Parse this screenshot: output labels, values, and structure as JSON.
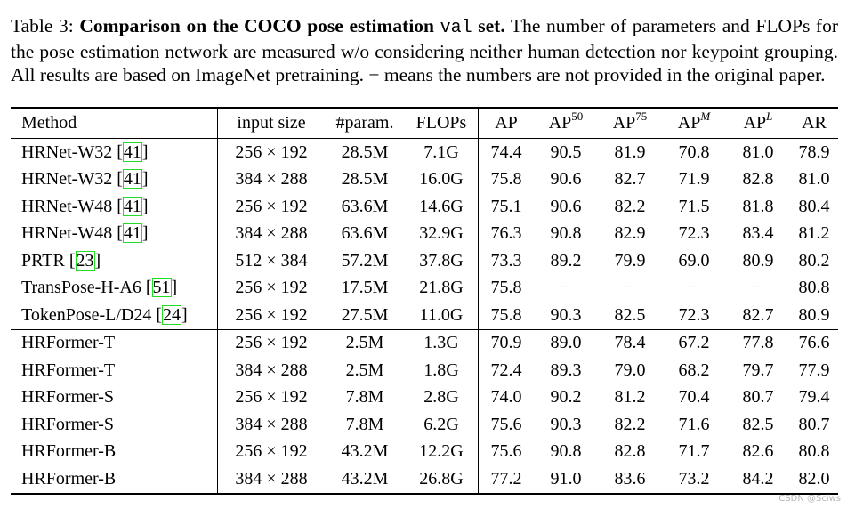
{
  "caption": {
    "prefix": "Table 3: ",
    "bold": "Comparison on the COCO pose estimation",
    "mono": "val",
    "bold_end": " set.",
    "rest": " The number of parameters and FLOPs for the pose estimation network are measured w/o considering neither human detection nor keypoint grouping. All results are based on ImageNet pretraining. − means the numbers are not provided in the original paper."
  },
  "table": {
    "headers": {
      "method": "Method",
      "input_size": "input size",
      "params": "#param.",
      "flops": "FLOPs",
      "ap": "AP",
      "ap50_base": "AP",
      "ap50_sup": "50",
      "ap75_base": "AP",
      "ap75_sup": "75",
      "apm_base": "AP",
      "apm_sup": "M",
      "apl_base": "AP",
      "apl_sup": "L",
      "ar": "AR"
    },
    "group1": [
      {
        "method": "HRNet-W32",
        "ref": "41",
        "input": "256 × 192",
        "params": "28.5M",
        "flops": "7.1G",
        "ap": "74.4",
        "ap50": "90.5",
        "ap75": "81.9",
        "apm": "70.8",
        "apl": "81.0",
        "ar": "78.9"
      },
      {
        "method": "HRNet-W32",
        "ref": "41",
        "input": "384 × 288",
        "params": "28.5M",
        "flops": "16.0G",
        "ap": "75.8",
        "ap50": "90.6",
        "ap75": "82.7",
        "apm": "71.9",
        "apl": "82.8",
        "ar": "81.0"
      },
      {
        "method": "HRNet-W48",
        "ref": "41",
        "input": "256 × 192",
        "params": "63.6M",
        "flops": "14.6G",
        "ap": "75.1",
        "ap50": "90.6",
        "ap75": "82.2",
        "apm": "71.5",
        "apl": "81.8",
        "ar": "80.4"
      },
      {
        "method": "HRNet-W48",
        "ref": "41",
        "input": "384 × 288",
        "params": "63.6M",
        "flops": "32.9G",
        "ap": "76.3",
        "ap50": "90.8",
        "ap75": "82.9",
        "apm": "72.3",
        "apl": "83.4",
        "ar": "81.2"
      },
      {
        "method": "PRTR",
        "ref": "23",
        "input": "512 × 384",
        "params": "57.2M",
        "flops": "37.8G",
        "ap": "73.3",
        "ap50": "89.2",
        "ap75": "79.9",
        "apm": "69.0",
        "apl": "80.9",
        "ar": "80.2"
      },
      {
        "method": "TransPose-H-A6",
        "ref": "51",
        "input": "256 × 192",
        "params": "17.5M",
        "flops": "21.8G",
        "ap": "75.8",
        "ap50": "−",
        "ap75": "−",
        "apm": "−",
        "apl": "−",
        "ar": "80.8"
      },
      {
        "method": "TokenPose-L/D24",
        "ref": "24",
        "input": "256 × 192",
        "params": "27.5M",
        "flops": "11.0G",
        "ap": "75.8",
        "ap50": "90.3",
        "ap75": "82.5",
        "apm": "72.3",
        "apl": "82.7",
        "ar": "80.9"
      }
    ],
    "group2": [
      {
        "method": "HRFormer-T",
        "input": "256 × 192",
        "params": "2.5M",
        "flops": "1.3G",
        "ap": "70.9",
        "ap50": "89.0",
        "ap75": "78.4",
        "apm": "67.2",
        "apl": "77.8",
        "ar": "76.6"
      },
      {
        "method": "HRFormer-T",
        "input": "384 × 288",
        "params": "2.5M",
        "flops": "1.8G",
        "ap": "72.4",
        "ap50": "89.3",
        "ap75": "79.0",
        "apm": "68.2",
        "apl": "79.7",
        "ar": "77.9"
      },
      {
        "method": "HRFormer-S",
        "input": "256 × 192",
        "params": "7.8M",
        "flops": "2.8G",
        "ap": "74.0",
        "ap50": "90.2",
        "ap75": "81.2",
        "apm": "70.4",
        "apl": "80.7",
        "ar": "79.4"
      },
      {
        "method": "HRFormer-S",
        "input": "384 × 288",
        "params": "7.8M",
        "flops": "6.2G",
        "ap": "75.6",
        "ap50": "90.3",
        "ap75": "82.2",
        "apm": "71.6",
        "apl": "82.5",
        "ar": "80.7"
      },
      {
        "method": "HRFormer-B",
        "input": "256 × 192",
        "params": "43.2M",
        "flops": "12.2G",
        "ap": "75.6",
        "ap50": "90.8",
        "ap75": "82.8",
        "apm": "71.7",
        "apl": "82.6",
        "ar": "80.8"
      },
      {
        "method": "HRFormer-B",
        "input": "384 × 288",
        "params": "43.2M",
        "flops": "26.8G",
        "ap": "77.2",
        "ap50": "91.0",
        "ap75": "83.6",
        "apm": "73.2",
        "apl": "84.2",
        "ar": "82.0"
      }
    ]
  },
  "watermark": "CSDN @Sciws",
  "colors": {
    "ref_box": "#22dd22",
    "text": "#000000",
    "watermark": "#b5b5b5"
  }
}
